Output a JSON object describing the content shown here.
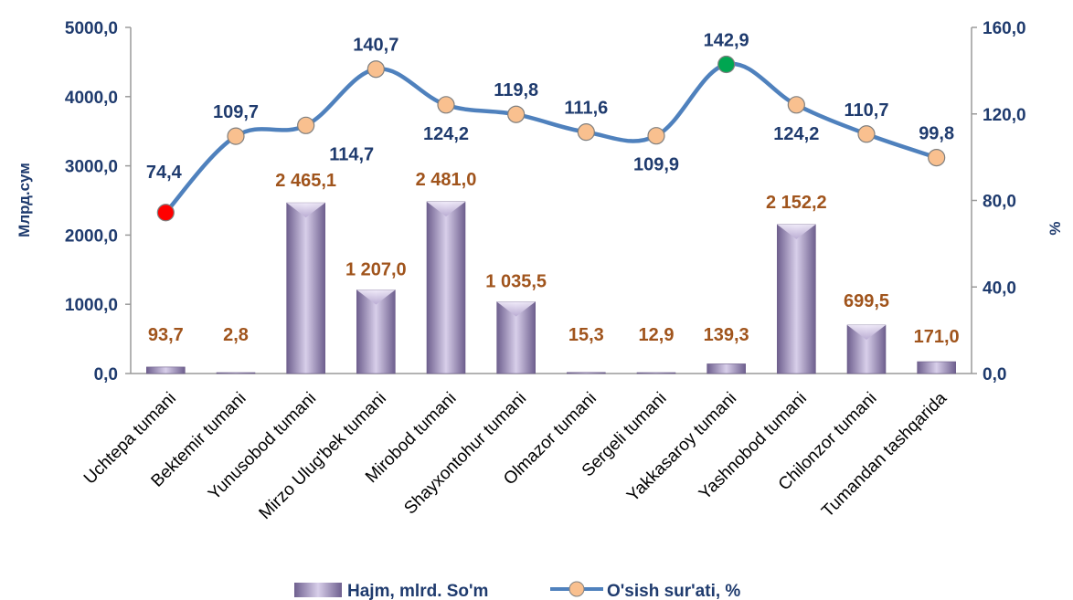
{
  "chart_data": {
    "type": "bar",
    "categories": [
      "Uchtepa tumani",
      "Bektemir tumani",
      "Yunusobod tumani",
      "Mirzo Ulug'bek tumani",
      "Mirobod tumani",
      "Shayxontohur tumani",
      "Olmazor tumani",
      "Sergeli tumani",
      "Yakkasaroy tumani",
      "Yashnobod tumani",
      "Chilonzor tumani",
      "Tumandan tashqarida"
    ],
    "series": [
      {
        "name": "Hajm, mlrd. So'm",
        "type": "bar",
        "axis": "left",
        "values": [
          93.7,
          2.8,
          2465.1,
          1207.0,
          2481.0,
          1035.5,
          15.3,
          12.9,
          139.3,
          2152.2,
          699.5,
          171.0
        ],
        "labels": [
          "93,7",
          "2,8",
          "2 465,1",
          "1 207,0",
          "2 481,0",
          "1 035,5",
          "15,3",
          "12,9",
          "139,3",
          "2 152,2",
          "699,5",
          "171,0"
        ],
        "color": "#9C8CB8"
      },
      {
        "name": "O'sish sur'ati, %",
        "type": "line",
        "axis": "right",
        "values": [
          74.4,
          109.7,
          114.7,
          140.7,
          124.2,
          119.8,
          111.6,
          109.9,
          142.9,
          124.2,
          110.7,
          99.8
        ],
        "labels": [
          "74,4",
          "109,7",
          "114,7",
          "140,7",
          "124,2",
          "119,8",
          "111,6",
          "109,9",
          "142,9",
          "124,2",
          "110,7",
          "99,8"
        ],
        "color": "#4F81BD",
        "marker_color": "#F9C08F",
        "min_marker_color": "#FF0000",
        "max_marker_color": "#00A651"
      }
    ],
    "y_left": {
      "label": "Млрд.сум",
      "range": [
        0,
        5000
      ],
      "ticks": [
        "0,0",
        "1000,0",
        "2000,0",
        "3000,0",
        "4000,0",
        "5000,0"
      ]
    },
    "y_right": {
      "label": "%",
      "range": [
        0,
        160
      ],
      "ticks": [
        "0,0",
        "40,0",
        "80,0",
        "120,0",
        "160,0"
      ]
    },
    "grid": false,
    "legend": {
      "position": "bottom",
      "items": [
        "Hajm, mlrd. So'm",
        "O'sish sur'ati, %"
      ]
    }
  }
}
